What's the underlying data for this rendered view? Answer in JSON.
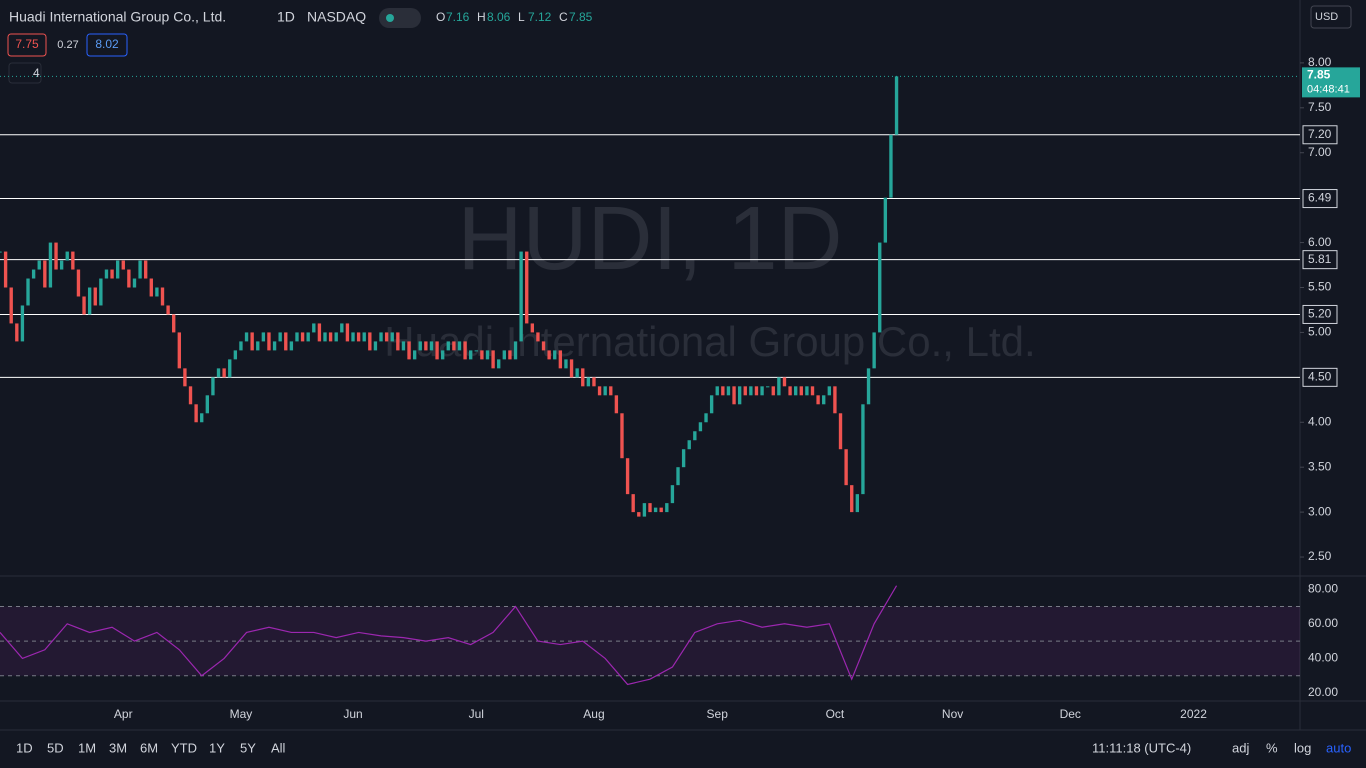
{
  "header": {
    "title": "Huadi International Group Co., Ltd.",
    "interval": "1D",
    "exchange": "NASDAQ",
    "ohlc": [
      {
        "label": "O",
        "value": 7.16
      },
      {
        "label": "H",
        "value": 8.06
      },
      {
        "label": "L",
        "value": 7.12
      },
      {
        "label": "C",
        "value": 7.85
      }
    ],
    "bid": 7.75,
    "spread": 0.27,
    "ask": 8.02,
    "indicators": 4,
    "currency": "USD"
  },
  "chart_data": {
    "type": "candlestick",
    "watermark": "HUDI, 1D",
    "watermark_name": "Huadi International Group Co., Ltd.",
    "up_color": "#26a69a",
    "down_color": "#ef5350",
    "close": [
      5.9,
      5.5,
      5.1,
      4.9,
      5.3,
      5.6,
      5.7,
      5.8,
      5.5,
      6.0,
      5.7,
      5.8,
      5.9,
      5.7,
      5.4,
      5.2,
      5.5,
      5.3,
      5.6,
      5.7,
      5.6,
      5.8,
      5.7,
      5.5,
      5.6,
      5.8,
      5.6,
      5.4,
      5.5,
      5.3,
      5.2,
      5.0,
      4.6,
      4.4,
      4.2,
      4.0,
      4.1,
      4.3,
      4.5,
      4.6,
      4.5,
      4.7,
      4.8,
      4.9,
      5.0,
      4.8,
      4.9,
      5.0,
      4.8,
      4.9,
      5.0,
      4.8,
      4.9,
      5.0,
      4.9,
      5.0,
      5.1,
      4.9,
      5.0,
      4.9,
      5.0,
      5.1,
      4.9,
      5.0,
      4.9,
      5.0,
      4.8,
      4.9,
      5.0,
      4.9,
      5.0,
      4.8,
      4.9,
      4.7,
      4.8,
      4.9,
      4.8,
      4.9,
      4.7,
      4.8,
      4.9,
      4.8,
      4.9,
      4.7,
      4.8,
      4.8,
      4.7,
      4.8,
      4.6,
      4.7,
      4.8,
      4.7,
      4.9,
      5.9,
      5.1,
      5.0,
      4.9,
      4.8,
      4.7,
      4.8,
      4.6,
      4.7,
      4.5,
      4.6,
      4.4,
      4.5,
      4.4,
      4.3,
      4.4,
      4.3,
      4.1,
      3.6,
      3.2,
      3.0,
      2.95,
      3.1,
      3.0,
      3.05,
      3.0,
      3.1,
      3.3,
      3.5,
      3.7,
      3.8,
      3.9,
      4.0,
      4.1,
      4.3,
      4.4,
      4.3,
      4.4,
      4.2,
      4.4,
      4.3,
      4.4,
      4.3,
      4.4,
      4.4,
      4.3,
      4.5,
      4.4,
      4.3,
      4.4,
      4.3,
      4.4,
      4.3,
      4.2,
      4.3,
      4.4,
      4.1,
      3.7,
      3.3,
      3.0,
      3.2,
      4.2,
      4.6,
      5.0,
      6.0,
      6.5,
      7.2,
      7.85
    ],
    "xlim": [
      0,
      232
    ],
    "xticks": [
      {
        "value": 22,
        "label": "Apr"
      },
      {
        "value": 43,
        "label": "May"
      },
      {
        "value": 63,
        "label": "Jun"
      },
      {
        "value": 85,
        "label": "Jul"
      },
      {
        "value": 106,
        "label": "Aug"
      },
      {
        "value": 128,
        "label": "Sep"
      },
      {
        "value": 149,
        "label": "Oct"
      },
      {
        "value": 170,
        "label": "Nov"
      },
      {
        "value": 191,
        "label": "Dec"
      },
      {
        "value": 213,
        "label": "2022"
      }
    ],
    "ylim": [
      2.3,
      8.7
    ],
    "yticks": [
      {
        "value": 8,
        "label": "8.00"
      },
      {
        "value": 7.5,
        "label": "7.50"
      },
      {
        "value": 7,
        "label": "7.00"
      },
      {
        "value": 6,
        "label": "6.00"
      },
      {
        "value": 5.5,
        "label": "5.50"
      },
      {
        "value": 5,
        "label": "5.00"
      },
      {
        "value": 4,
        "label": "4.00"
      },
      {
        "value": 3.5,
        "label": "3.50"
      },
      {
        "value": 3,
        "label": "3.00"
      },
      {
        "value": 2.5,
        "label": "2.50"
      }
    ],
    "levels": [
      {
        "value": 7.2,
        "label": "7.20"
      },
      {
        "value": 6.49,
        "label": "6.49"
      },
      {
        "value": 5.81,
        "label": "5.81"
      },
      {
        "value": 5.2,
        "label": "5.20"
      },
      {
        "value": 4.5,
        "label": "4.50"
      }
    ],
    "last": {
      "value": 7.85,
      "label": "7.85",
      "countdown": "04:48:41"
    },
    "rsi": {
      "color": "#9c27b0",
      "x": [
        0,
        4,
        8,
        12,
        16,
        20,
        24,
        28,
        32,
        36,
        40,
        44,
        48,
        52,
        56,
        60,
        64,
        68,
        72,
        76,
        80,
        84,
        88,
        92,
        96,
        100,
        104,
        108,
        112,
        116,
        120,
        124,
        128,
        132,
        136,
        140,
        144,
        148,
        152,
        156,
        160
      ],
      "values": [
        55,
        40,
        45,
        60,
        55,
        58,
        50,
        55,
        45,
        30,
        40,
        55,
        58,
        55,
        55,
        52,
        55,
        53,
        52,
        50,
        52,
        48,
        55,
        70,
        50,
        48,
        50,
        40,
        25,
        28,
        35,
        55,
        60,
        62,
        58,
        60,
        58,
        60,
        28,
        60,
        82
      ],
      "ylim": [
        16,
        87
      ],
      "levels": [
        70,
        50,
        30
      ],
      "yticks": [
        {
          "value": 80,
          "label": "80.00"
        },
        {
          "value": 60,
          "label": "60.00"
        },
        {
          "value": 40,
          "label": "40.00"
        },
        {
          "value": 20,
          "label": "20.00"
        }
      ]
    }
  },
  "toolbar": {
    "ranges": [
      "1D",
      "5D",
      "1M",
      "3M",
      "6M",
      "YTD",
      "1Y",
      "5Y",
      "All"
    ],
    "time": "11:11:18 (UTC-4)",
    "options": [
      "adj",
      "%",
      "log",
      "auto"
    ]
  }
}
